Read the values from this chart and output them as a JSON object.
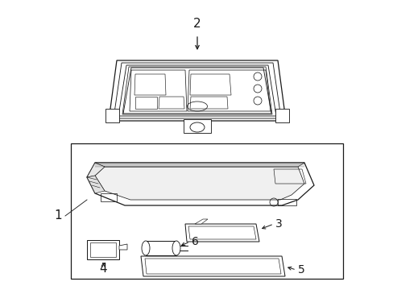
{
  "background_color": "#ffffff",
  "line_color": "#1a1a1a",
  "lw": 0.9,
  "fig_w": 4.89,
  "fig_h": 3.6,
  "dpi": 100
}
